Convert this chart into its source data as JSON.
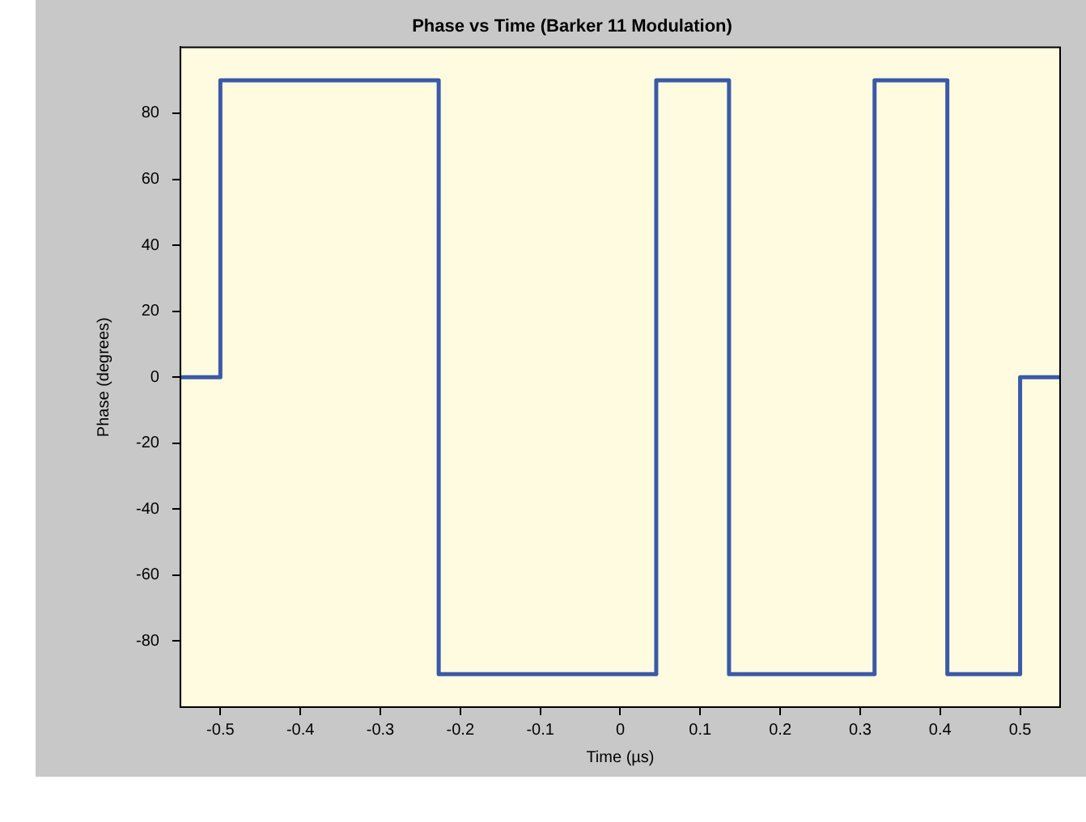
{
  "chart_data": {
    "type": "step",
    "title": "Phase vs Time (Barker 11 Modulation)",
    "xlabel": "Time (µs)",
    "ylabel": "Phase (degrees)",
    "x": [
      -0.55,
      -0.5,
      -0.227,
      0.045,
      0.136,
      0.318,
      0.409,
      0.5,
      0.55
    ],
    "series": [
      {
        "color": "#3a5aa8",
        "values": [
          0,
          90,
          -90,
          90,
          -90,
          90,
          -90,
          0,
          0
        ]
      }
    ],
    "xlim": [
      -0.55,
      0.55
    ],
    "xticks": [
      -0.5,
      -0.4,
      -0.3,
      -0.2,
      -0.1,
      0,
      0.1,
      0.2,
      0.3,
      0.4,
      0.5
    ],
    "ylim": [
      -100,
      100
    ],
    "yticks": [
      -80,
      -60,
      -40,
      -20,
      0,
      20,
      40,
      60,
      80
    ],
    "grid": false,
    "legend": false,
    "marker": "none",
    "line_style": "solid"
  }
}
